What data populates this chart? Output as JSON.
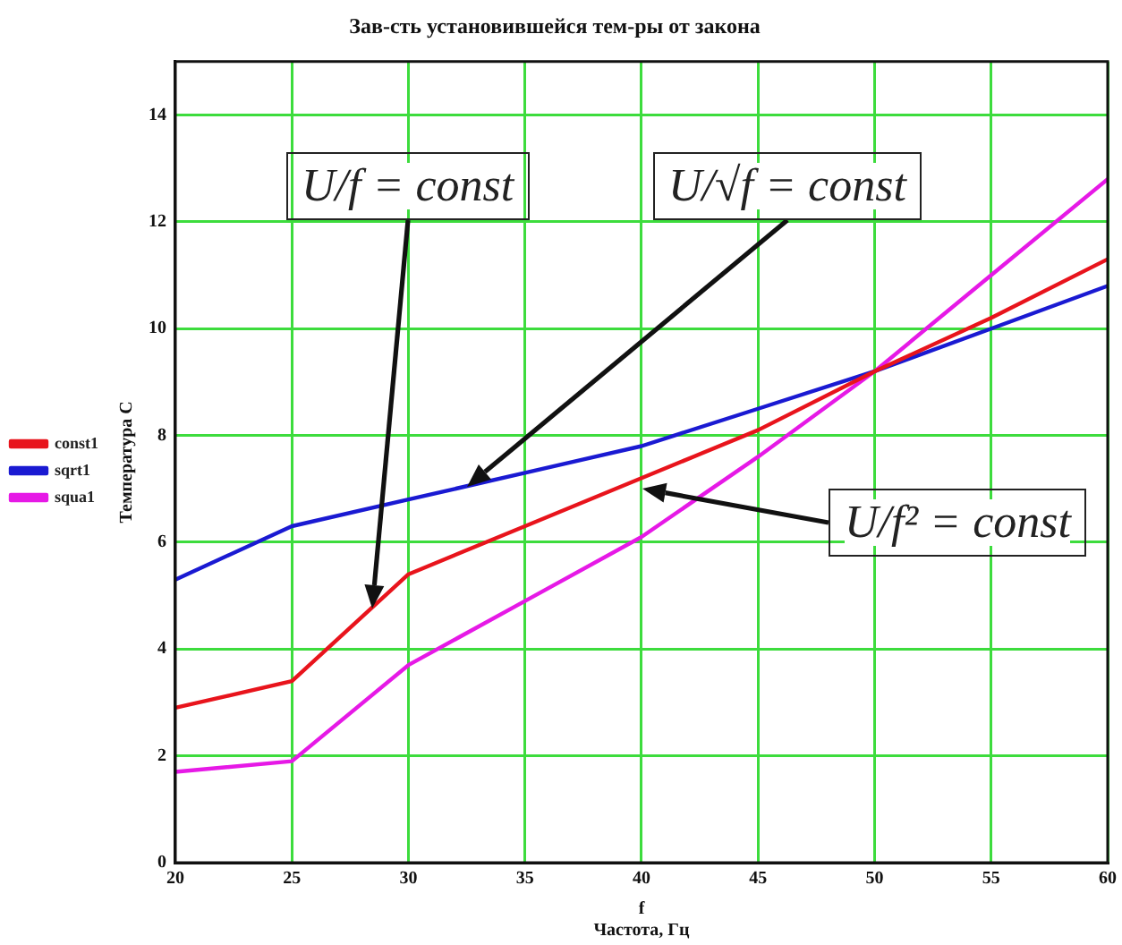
{
  "chart_data": {
    "type": "line",
    "title": "Зав-сть установившейся тем-ры от закона",
    "xlabel": "f\nЧастота, Гц",
    "ylabel": "Температура С",
    "x": [
      20,
      25,
      30,
      35,
      40,
      45,
      50,
      55,
      60
    ],
    "series": [
      {
        "name": "const1",
        "color": "#e8141c",
        "values": [
          2.9,
          3.4,
          5.4,
          6.3,
          7.2,
          8.1,
          9.2,
          10.2,
          11.3
        ]
      },
      {
        "name": "sqrt1",
        "color": "#1a1ad2",
        "values": [
          5.3,
          6.3,
          6.8,
          7.3,
          7.8,
          8.5,
          9.2,
          10.0,
          10.8
        ]
      },
      {
        "name": "squa1",
        "color": "#e619e6",
        "values": [
          1.7,
          1.9,
          3.7,
          4.9,
          6.1,
          7.6,
          9.2,
          11.0,
          12.8
        ]
      }
    ],
    "xlim": [
      20,
      60
    ],
    "xticks": [
      20,
      25,
      30,
      35,
      40,
      45,
      50,
      55,
      60
    ],
    "ylim": [
      0,
      15
    ],
    "yticks": [
      0,
      2,
      4,
      6,
      8,
      10,
      12,
      14
    ],
    "annotations": [
      "U/f = const",
      "U/√f = const",
      "U/f² = const"
    ],
    "grid": true,
    "legend": "left",
    "marker": "none",
    "line_style": "solid"
  }
}
